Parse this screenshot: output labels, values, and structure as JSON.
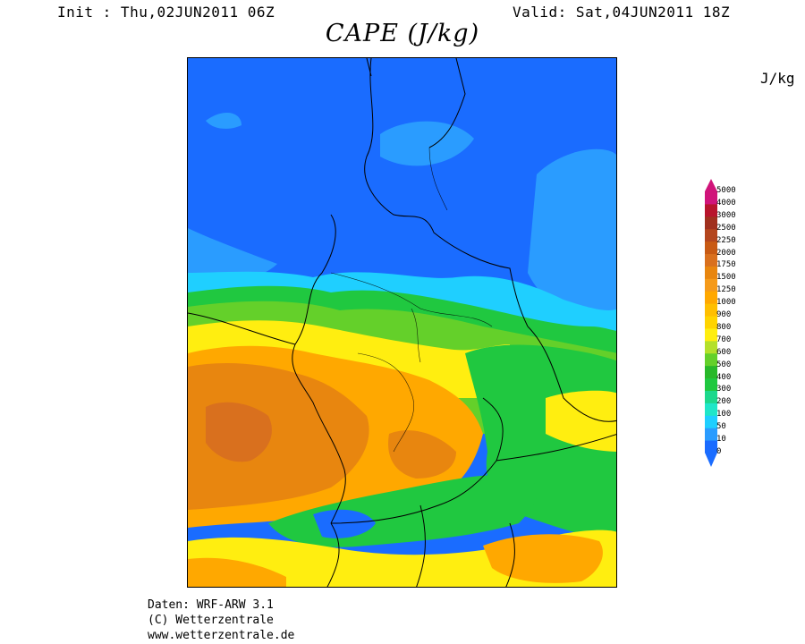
{
  "header": {
    "init": "Init : Thu,02JUN2011 06Z",
    "valid": "Valid: Sat,04JUN2011 18Z"
  },
  "title": "CAPE (J/kg)",
  "legend": {
    "unit": "J/kg",
    "levels": [
      "0",
      "10",
      "50",
      "100",
      "200",
      "300",
      "400",
      "500",
      "600",
      "700",
      "800",
      "900",
      "1000",
      "1250",
      "1500",
      "1750",
      "2000",
      "2250",
      "2500",
      "3000",
      "4000",
      "5000"
    ],
    "colors": [
      "#1a6cff",
      "#2a9cff",
      "#1fcfff",
      "#1fe6c8",
      "#1cd88c",
      "#20c840",
      "#28b82a",
      "#64d02a",
      "#b4e02a",
      "#ffee10",
      "#ffd400",
      "#ffbf00",
      "#ffa800",
      "#f59a1a",
      "#e8860f",
      "#d9701e",
      "#c85a14",
      "#b4461e",
      "#a0301e",
      "#b8142c",
      "#d0147a"
    ]
  },
  "footer": {
    "line1": "Daten: WRF-ARW 3.1",
    "line2": "(C) Wetterzentrale",
    "line3": "www.wetterzentrale.de"
  }
}
